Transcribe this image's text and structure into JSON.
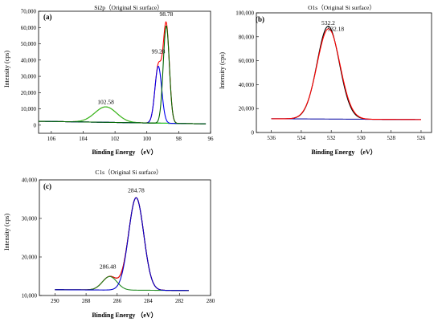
{
  "chart_data": [
    {
      "type": "line",
      "panel_label": "(a)",
      "title": "Si2p（Original Si surface）",
      "xlabel": "Binding Energy （eV）",
      "ylabel": "Intensity (cps)",
      "xlim": [
        106.8,
        96
      ],
      "ylim": [
        -5000,
        70000
      ],
      "x_ticks": [
        106,
        104,
        102,
        100,
        98,
        96
      ],
      "y_ticks": [
        0,
        10000,
        20000,
        30000,
        40000,
        50000,
        60000,
        70000
      ],
      "y_tick_labels": [
        "0",
        "10,000",
        "20,000",
        "30,000",
        "40,000",
        "50,000",
        "60,000",
        "70,000"
      ],
      "annotations": [
        {
          "text": "102.58",
          "x": 102.58,
          "y": 13000
        },
        {
          "text": "99.28",
          "x": 99.28,
          "y": 44000
        },
        {
          "text": "98.78",
          "x": 98.78,
          "y": 67000
        }
      ],
      "series": [
        {
          "color": "#000000",
          "background": {
            "x0": 106.8,
            "y0": 2400,
            "x1": 96.3,
            "y1": 800
          },
          "peaks": []
        },
        {
          "color": "#ff0000",
          "background": {
            "x0": 106.8,
            "y0": 2400,
            "x1": 96.3,
            "y1": 800
          },
          "peaks": [
            {
              "center": 102.58,
              "height": 9500,
              "fwhm": 1.6
            },
            {
              "center": 99.28,
              "height": 35000,
              "fwhm": 0.5
            },
            {
              "center": 98.78,
              "height": 60000,
              "fwhm": 0.45
            }
          ]
        },
        {
          "color": "#22cc22",
          "background": {
            "x0": 106.8,
            "y0": 2400,
            "x1": 96.3,
            "y1": 800
          },
          "peaks": [
            {
              "center": 102.58,
              "height": 9500,
              "fwhm": 1.6
            }
          ]
        },
        {
          "color": "#0000ee",
          "background": {
            "x0": 106.8,
            "y0": 2400,
            "x1": 96.3,
            "y1": 800
          },
          "peaks": [
            {
              "center": 99.28,
              "height": 35000,
              "fwhm": 0.5
            }
          ]
        },
        {
          "color": "#006600",
          "background": {
            "x0": 106.8,
            "y0": 2400,
            "x1": 96.3,
            "y1": 800
          },
          "peaks": [
            {
              "center": 98.78,
              "height": 60000,
              "fwhm": 0.45
            }
          ]
        }
      ]
    },
    {
      "type": "line",
      "panel_label": "(b)",
      "title": "O1s（Original Si surface）",
      "xlabel": "Binding Energy （eV）",
      "ylabel": "Intensity (cps)",
      "xlim": [
        537,
        525.3
      ],
      "ylim": [
        0,
        100000
      ],
      "x_ticks": [
        536,
        534,
        532,
        530,
        528,
        526
      ],
      "y_ticks": [
        0,
        20000,
        40000,
        60000,
        80000,
        100000
      ],
      "y_tick_labels": [
        "0",
        "20,000",
        "40,000",
        "60,000",
        "80,000",
        "100,000"
      ],
      "annotations": [
        {
          "text": "532.2",
          "x": 532.2,
          "y": 90000
        },
        {
          "text": "532.18",
          "x": 531.7,
          "y": 85000
        }
      ],
      "series": [
        {
          "color": "#000000",
          "background": {
            "x0": 536,
            "y0": 11500,
            "x1": 526,
            "y1": 10800
          },
          "peaks": [
            {
              "center": 532.2,
              "height": 77500,
              "fwhm": 1.75
            }
          ]
        },
        {
          "color": "#1a1aaa",
          "background": {
            "x0": 536,
            "y0": 11500,
            "x1": 526,
            "y1": 10800
          },
          "peaks": []
        },
        {
          "color": "#ff0000",
          "background": {
            "x0": 536,
            "y0": 11500,
            "x1": 526,
            "y1": 10800
          },
          "peaks": [
            {
              "center": 532.18,
              "height": 75500,
              "fwhm": 1.8
            }
          ]
        }
      ]
    },
    {
      "type": "line",
      "panel_label": "(c)",
      "title": "C1s（Original Si surface）",
      "xlabel": "Binding Energy （eV）",
      "ylabel": "Intensity (cps)",
      "xlim": [
        291,
        280
      ],
      "ylim": [
        10000,
        40000
      ],
      "x_ticks": [
        290,
        288,
        286,
        284,
        282,
        280
      ],
      "y_ticks": [
        10000,
        20000,
        30000,
        40000
      ],
      "y_tick_labels": [
        "10,000",
        "20,000",
        "30,000",
        "40,000"
      ],
      "annotations": [
        {
          "text": "284.78",
          "x": 284.78,
          "y": 36800
        },
        {
          "text": "286.48",
          "x": 286.6,
          "y": 17000
        }
      ],
      "series": [
        {
          "color": "#000000",
          "background": {
            "x0": 290,
            "y0": 11500,
            "x1": 281.4,
            "y1": 11300
          },
          "peaks": [
            {
              "center": 286.48,
              "height": 3500,
              "fwhm": 1.1
            },
            {
              "center": 284.78,
              "height": 24000,
              "fwhm": 1.15
            }
          ]
        },
        {
          "color": "#ff0000",
          "background": {
            "x0": 290,
            "y0": 11500,
            "x1": 281.4,
            "y1": 11300
          },
          "peaks": [
            {
              "center": 286.48,
              "height": 3500,
              "fwhm": 1.1
            },
            {
              "center": 284.78,
              "height": 24000,
              "fwhm": 1.15
            }
          ]
        },
        {
          "color": "#228b22",
          "background": {
            "x0": 290,
            "y0": 11500,
            "x1": 281.4,
            "y1": 11300
          },
          "peaks": [
            {
              "center": 286.48,
              "height": 3500,
              "fwhm": 1.1
            }
          ]
        },
        {
          "color": "#0000cc",
          "background": {
            "x0": 290,
            "y0": 11500,
            "x1": 281.4,
            "y1": 11300
          },
          "peaks": [
            {
              "center": 284.78,
              "height": 24000,
              "fwhm": 1.15
            }
          ]
        }
      ]
    }
  ]
}
